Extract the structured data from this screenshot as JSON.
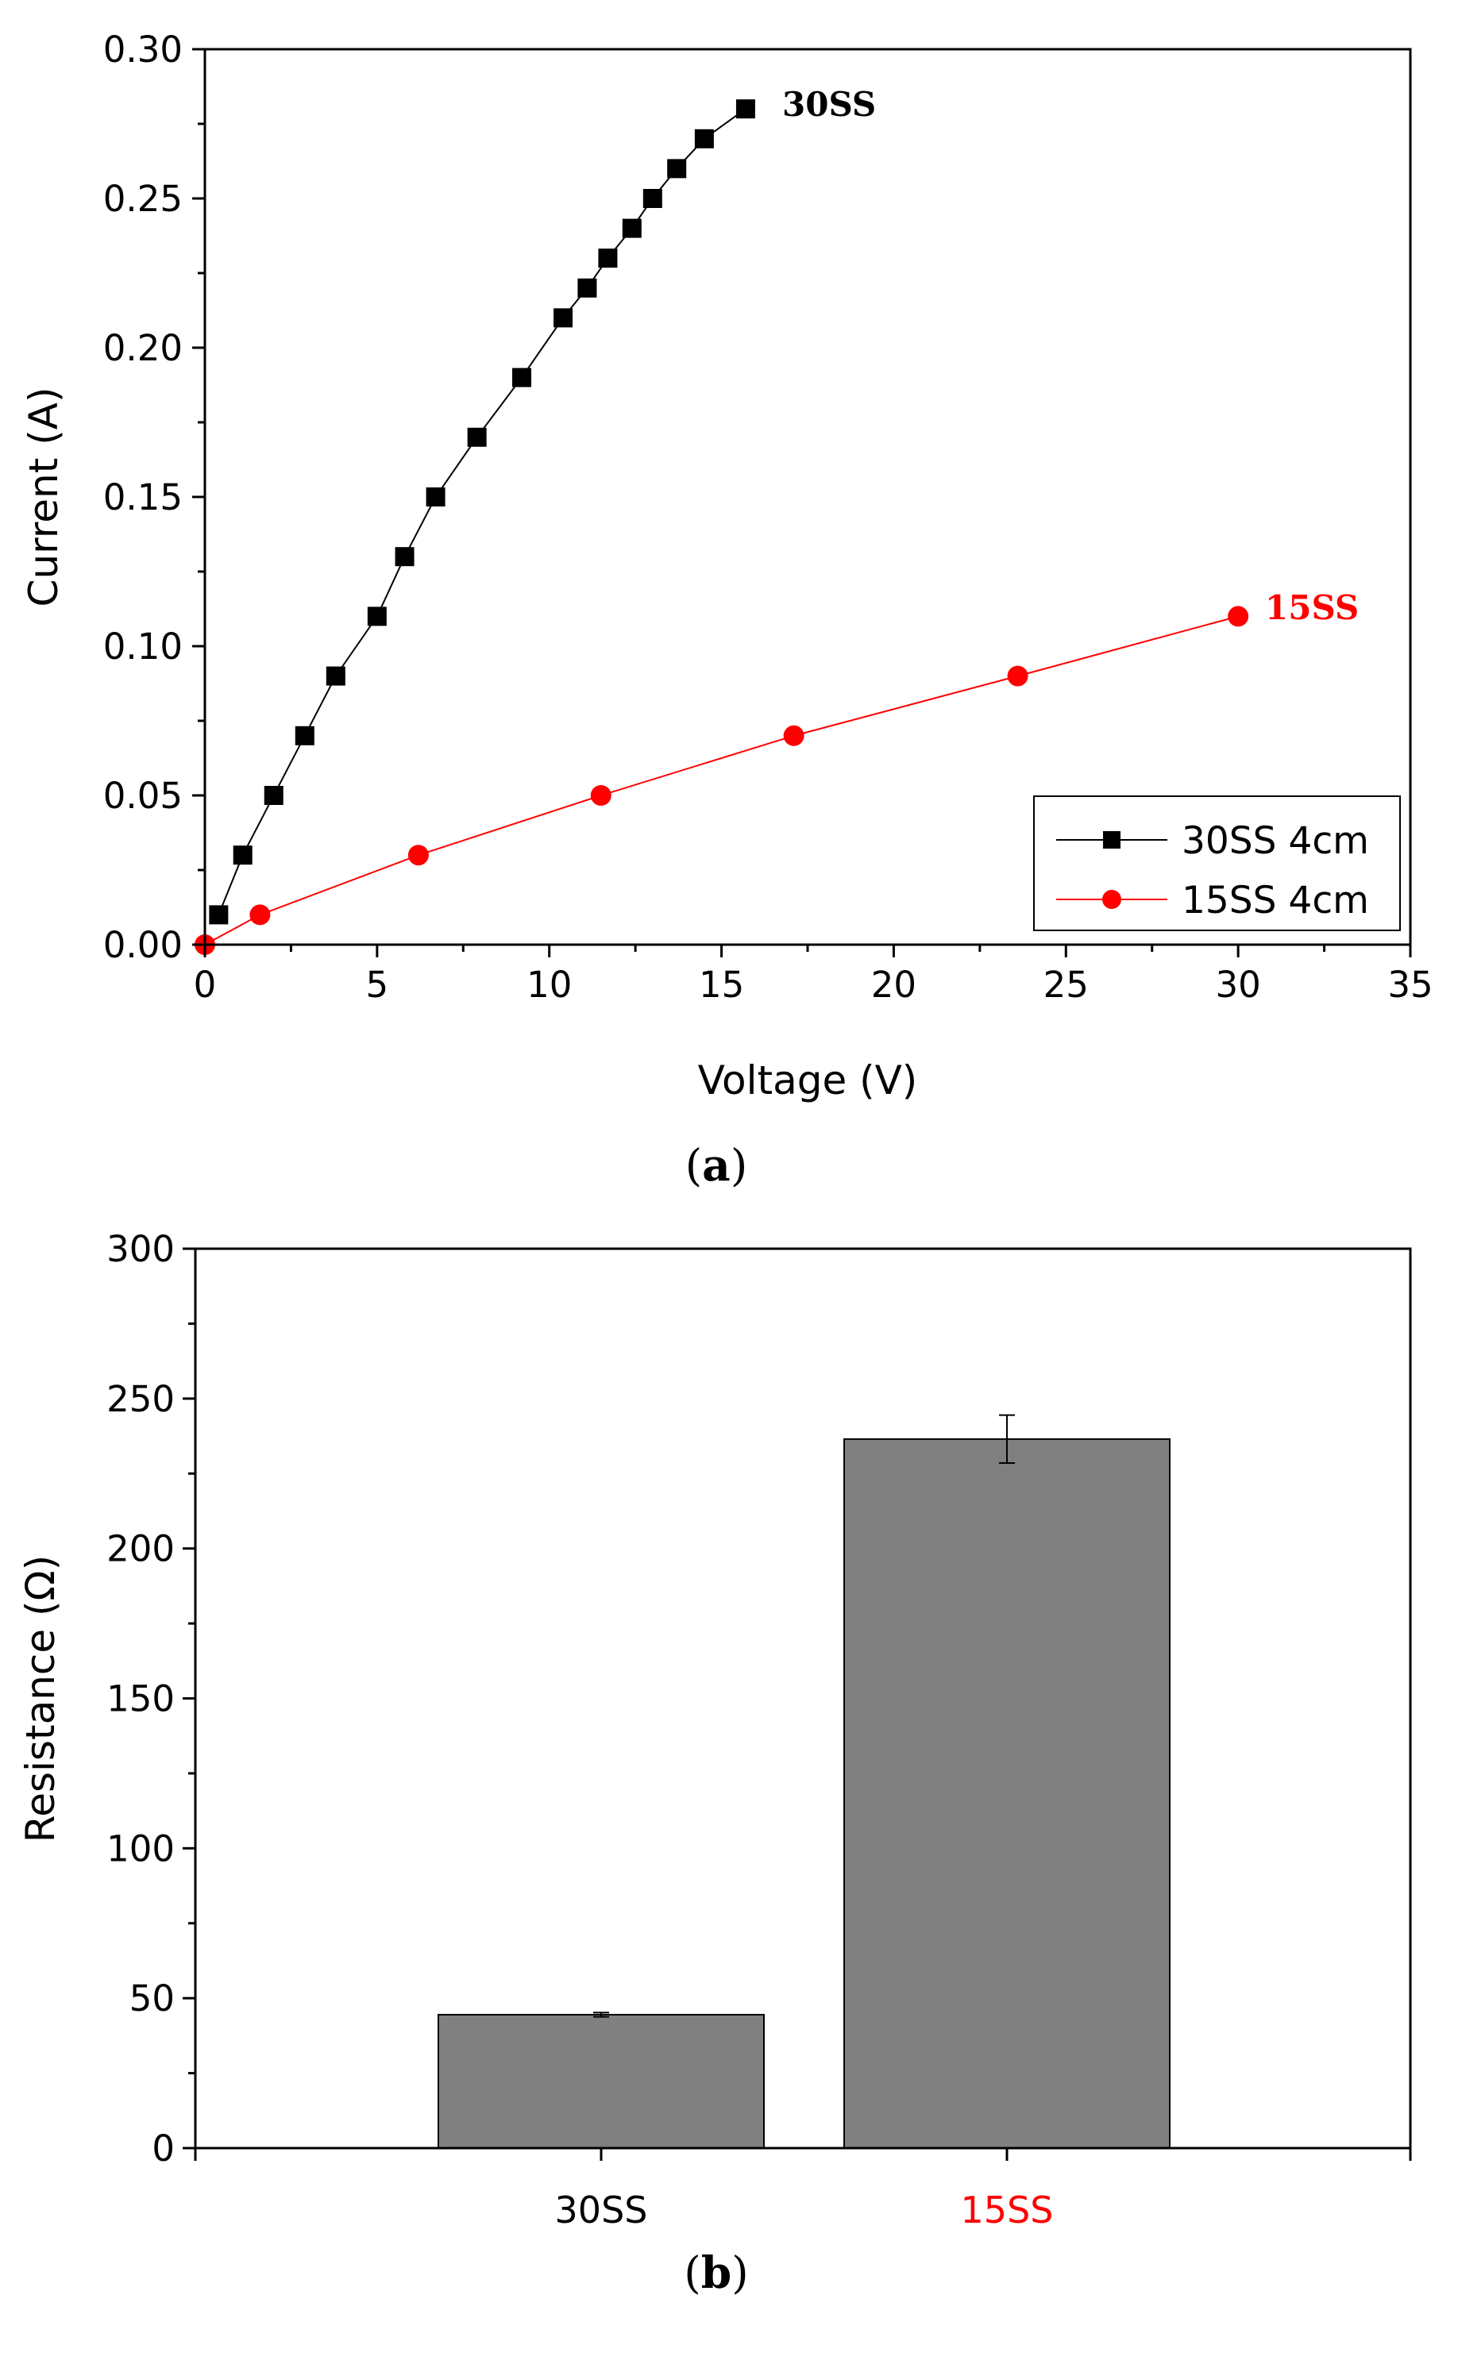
{
  "chart_data": [
    {
      "type": "line",
      "panel_label": "a",
      "title": "",
      "xlabel": "Voltage (V)",
      "ylabel": "Current (A)",
      "xlim": [
        0,
        35
      ],
      "ylim": [
        0,
        0.3
      ],
      "xticks": [
        0,
        5,
        10,
        15,
        20,
        25,
        30,
        35
      ],
      "yticks": [
        "0.00",
        "0.05",
        "0.10",
        "0.15",
        "0.20",
        "0.25",
        "0.30"
      ],
      "grid": false,
      "legend_position": "bottom-right",
      "series": [
        {
          "name": "30SS 4cm",
          "annotation": "30SS",
          "color": "#000000",
          "marker": "square",
          "x": [
            0.4,
            1.1,
            2.0,
            2.9,
            3.8,
            5.0,
            5.8,
            6.7,
            7.9,
            9.2,
            10.4,
            11.1,
            11.7,
            12.4,
            13.0,
            13.7,
            14.5,
            15.7
          ],
          "y": [
            0.01,
            0.03,
            0.05,
            0.07,
            0.09,
            0.11,
            0.13,
            0.15,
            0.17,
            0.19,
            0.21,
            0.22,
            0.23,
            0.24,
            0.25,
            0.26,
            0.27,
            0.28
          ]
        },
        {
          "name": "15SS 4cm",
          "annotation": "15SS",
          "color": "#ff0000",
          "marker": "circle",
          "x": [
            0,
            1.6,
            6.2,
            11.5,
            17.1,
            23.6,
            30.0
          ],
          "y": [
            0.0,
            0.01,
            0.03,
            0.05,
            0.07,
            0.09,
            0.11
          ]
        }
      ]
    },
    {
      "type": "bar",
      "panel_label": "b",
      "title": "",
      "xlabel": "",
      "ylabel": "Resistance (Ω)",
      "ylim": [
        0,
        300
      ],
      "yticks": [
        0,
        50,
        100,
        150,
        200,
        250,
        300
      ],
      "grid": false,
      "categories": [
        "30SS",
        "15SS"
      ],
      "category_colors": [
        "#000000",
        "#ff0000"
      ],
      "values": [
        44.5,
        236.5
      ],
      "errors": [
        0.7,
        8
      ],
      "bar_color": "#808080"
    }
  ]
}
